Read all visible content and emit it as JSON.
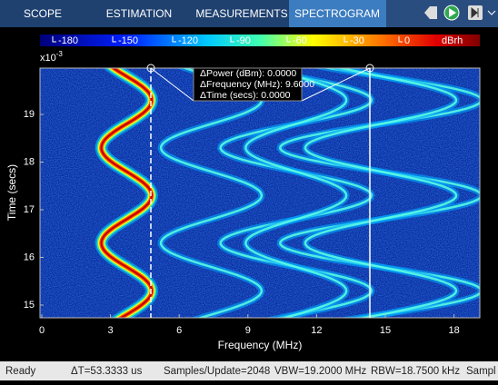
{
  "tabs": [
    "SCOPE",
    "ESTIMATION",
    "MEASUREMENTS",
    "SPECTROGRAM"
  ],
  "colorbar": {
    "labels": [
      "-180",
      "-150",
      "-120",
      "-90",
      "-60",
      "-30",
      "0"
    ],
    "unit": "dBrh"
  },
  "plot": {
    "y_exponent_base": "x10",
    "y_exponent_power": "-3",
    "x_ticks": [
      "0",
      "3",
      "6",
      "9",
      "12",
      "15",
      "18"
    ],
    "y_ticks": [
      "15",
      "16",
      "17",
      "18",
      "19"
    ],
    "x_label": "Frequency (MHz)",
    "y_label": "Time (secs)"
  },
  "cursor_readout": [
    "ΔPower (dBm): 0.0000",
    "ΔFrequency (MHz): 9.6000",
    "ΔTime (secs): 0.0000"
  ],
  "status": [
    "Ready",
    "ΔT=53.3333 us",
    "Samples/Update=2048",
    "VBW=19.2000 MHz",
    "RBW=18.7500 kHz",
    "Sampl"
  ]
}
